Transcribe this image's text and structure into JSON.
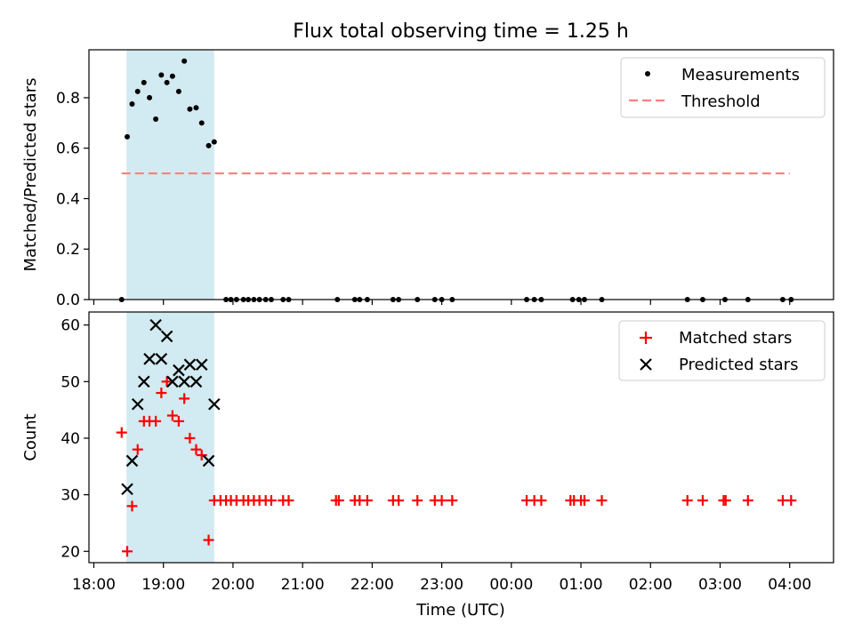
{
  "title": "Flux total observing time = 1.25 h",
  "colors": {
    "measurement": "#000000",
    "threshold": "#ff7f7f",
    "matched": "#ff0000",
    "predicted": "#000000",
    "span": "#add8e6"
  },
  "chart_data": [
    {
      "type": "scatter",
      "ylabel": "Matched/Predicted stars",
      "xlabel": "",
      "xlim": [
        17.93,
        28.63
      ],
      "ylim": [
        0,
        0.99
      ],
      "yticks": [
        0.0,
        0.2,
        0.4,
        0.6,
        0.8
      ],
      "ytick_labels": [
        "0.0",
        "0.2",
        "0.4",
        "0.6",
        "0.8"
      ],
      "span": [
        18.47,
        19.73
      ],
      "legend": {
        "position": "top-right",
        "entries": [
          "Measurements",
          "Threshold"
        ]
      },
      "threshold": {
        "name": "Threshold",
        "y": 0.5,
        "x_range": [
          18.4,
          28.0
        ]
      },
      "series": [
        {
          "name": "Measurements",
          "x": [
            18.4,
            18.48,
            18.55,
            18.63,
            18.72,
            18.8,
            18.89,
            18.97,
            19.05,
            19.13,
            19.22,
            19.3,
            19.38,
            19.47,
            19.55,
            19.65,
            19.73,
            19.9,
            19.97,
            20.05,
            20.15,
            20.22,
            20.3,
            20.38,
            20.47,
            20.55,
            20.72,
            20.8,
            21.5,
            21.75,
            21.82,
            21.93,
            22.3,
            22.38,
            22.65,
            22.9,
            23.0,
            23.15,
            24.22,
            24.33,
            24.43,
            24.88,
            24.97,
            25.05,
            25.3,
            26.53,
            26.75,
            27.07,
            27.4,
            27.9,
            28.02
          ],
          "y": [
            0,
            0.645,
            0.775,
            0.825,
            0.86,
            0.8,
            0.715,
            0.89,
            0.86,
            0.885,
            0.825,
            0.945,
            0.755,
            0.76,
            0.7,
            0.61,
            0.625,
            0,
            0,
            0,
            0,
            0,
            0,
            0,
            0,
            0,
            0,
            0,
            0,
            0,
            0,
            0,
            0,
            0,
            0,
            0,
            0,
            0,
            0,
            0,
            0,
            0,
            0,
            0,
            0,
            0,
            0,
            0,
            0,
            0,
            0
          ]
        }
      ]
    },
    {
      "type": "scatter",
      "ylabel": "Count",
      "xlabel": "Time (UTC)",
      "xlim": [
        17.93,
        28.63
      ],
      "ylim": [
        18,
        62.3
      ],
      "yticks": [
        20,
        30,
        40,
        50,
        60
      ],
      "ytick_labels": [
        "20",
        "30",
        "40",
        "50",
        "60"
      ],
      "xticks": [
        18,
        19,
        20,
        21,
        22,
        23,
        24,
        25,
        26,
        27,
        28
      ],
      "xtick_labels": [
        "18:00",
        "19:00",
        "20:00",
        "21:00",
        "22:00",
        "23:00",
        "00:00",
        "01:00",
        "02:00",
        "03:00",
        "04:00"
      ],
      "span": [
        18.47,
        19.73
      ],
      "legend": {
        "position": "top-right",
        "entries": [
          "Matched stars",
          "Predicted stars"
        ]
      },
      "series": [
        {
          "name": "Matched stars",
          "marker": "plus",
          "x": [
            18.4,
            18.48,
            18.55,
            18.63,
            18.72,
            18.8,
            18.89,
            18.97,
            19.05,
            19.13,
            19.22,
            19.3,
            19.38,
            19.47,
            19.55,
            19.65,
            19.73,
            19.82,
            19.9,
            19.97,
            20.05,
            20.15,
            20.22,
            20.3,
            20.38,
            20.47,
            20.55,
            20.72,
            20.8,
            21.48,
            21.52,
            21.75,
            21.82,
            21.93,
            22.3,
            22.38,
            22.65,
            22.9,
            23.0,
            23.15,
            24.22,
            24.33,
            24.43,
            24.85,
            24.9,
            25.0,
            25.05,
            25.3,
            26.53,
            26.75,
            27.05,
            27.08,
            27.4,
            27.9,
            28.02
          ],
          "y": [
            41,
            20,
            28,
            38,
            43,
            43,
            43,
            48,
            50,
            44,
            43,
            47,
            40,
            38,
            37,
            22,
            29,
            29,
            29,
            29,
            29,
            29,
            29,
            29,
            29,
            29,
            29,
            29,
            29,
            29,
            29,
            29,
            29,
            29,
            29,
            29,
            29,
            29,
            29,
            29,
            29,
            29,
            29,
            29,
            29,
            29,
            29,
            29,
            29,
            29,
            29,
            29,
            29,
            29,
            29
          ]
        },
        {
          "name": "Predicted stars",
          "marker": "x",
          "x": [
            18.48,
            18.55,
            18.63,
            18.72,
            18.8,
            18.89,
            18.97,
            19.05,
            19.13,
            19.22,
            19.3,
            19.38,
            19.47,
            19.55,
            19.65,
            19.73
          ],
          "y": [
            31,
            36,
            46,
            50,
            54,
            60,
            54,
            58,
            50,
            52,
            50,
            53,
            50,
            53,
            36,
            46
          ]
        }
      ]
    }
  ]
}
